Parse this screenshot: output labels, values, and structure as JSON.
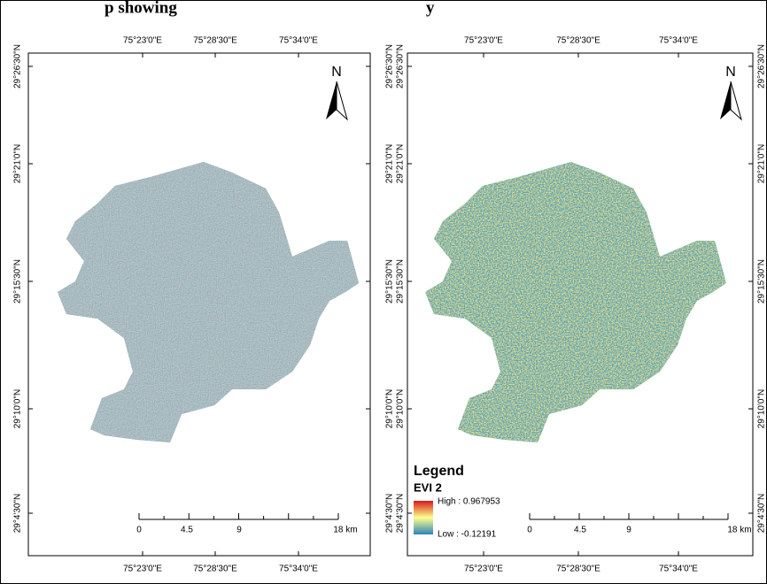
{
  "title_fragments": [
    "p showing",
    "y"
  ],
  "graticule": {
    "longitudes": [
      "75°23'0\"E",
      "75°28'30\"E",
      "75°34'0\"E"
    ],
    "latitudes": [
      "29°26'30\"N",
      "29°21'0\"N",
      "29°15'30\"N",
      "29°10'0\"N",
      "29°4'30\"N"
    ]
  },
  "north": "N",
  "scale_bar": [
    "0",
    "4.5",
    "9",
    "18 km"
  ],
  "legend": {
    "title": "Legend",
    "layer": "EVI 2",
    "high": "High : 0.967953",
    "low": "Low : -0.12191"
  }
}
